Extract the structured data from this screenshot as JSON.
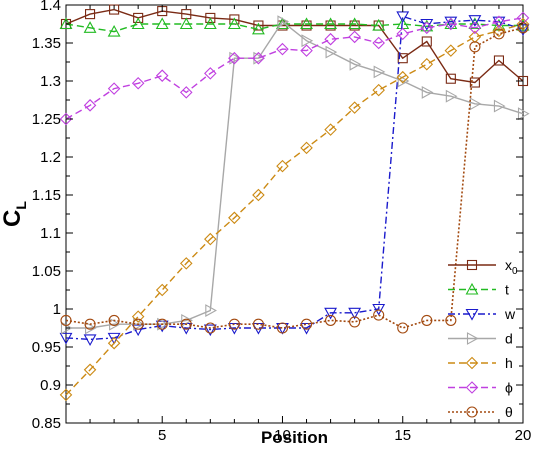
{
  "chart_data": {
    "type": "line",
    "title": "",
    "xlabel": "Position",
    "ylabel": "C",
    "ylabel_sub": "L",
    "xlim": [
      1,
      20
    ],
    "ylim": [
      0.85,
      1.4
    ],
    "x_ticks": [
      5,
      10,
      15,
      20
    ],
    "x_tick_labels": [
      "5",
      "10",
      "15",
      "20"
    ],
    "y_ticks": [
      0.85,
      0.9,
      0.95,
      1.0,
      1.05,
      1.1,
      1.15,
      1.2,
      1.25,
      1.3,
      1.35,
      1.4
    ],
    "y_tick_labels": [
      "0.85",
      "0.9",
      "0.95",
      "1",
      "1.05",
      "1.1",
      "1.15",
      "1.2",
      "1.25",
      "1.3",
      "1.35",
      "1.4"
    ],
    "grid": false,
    "legend_position": "bottom-right",
    "x": [
      1,
      2,
      3,
      4,
      5,
      6,
      7,
      8,
      9,
      10,
      11,
      12,
      13,
      14,
      15,
      16,
      17,
      18,
      19,
      20
    ],
    "series": [
      {
        "name": "x",
        "name_sub": "0",
        "color": "#7a2a14",
        "dash": "solid",
        "marker": "square",
        "values": [
          1.375,
          1.388,
          1.394,
          1.383,
          1.392,
          1.388,
          1.383,
          1.381,
          1.373,
          1.373,
          1.373,
          1.373,
          1.373,
          1.373,
          1.33,
          1.352,
          1.303,
          1.298,
          1.327,
          1.3
        ]
      },
      {
        "name": "t",
        "color": "#22bb22",
        "dash": "dashed",
        "marker": "triangle-up",
        "values": [
          1.375,
          1.37,
          1.365,
          1.375,
          1.375,
          1.375,
          1.375,
          1.375,
          1.368,
          1.375,
          1.375,
          1.375,
          1.375,
          1.373,
          1.375,
          1.372,
          1.375,
          1.375,
          1.373,
          1.373
        ]
      },
      {
        "name": "w",
        "color": "#1a1acc",
        "dash": "dashdot",
        "marker": "triangle-down",
        "values": [
          0.962,
          0.96,
          0.962,
          0.973,
          0.978,
          0.975,
          0.973,
          0.975,
          0.975,
          0.975,
          0.975,
          0.995,
          0.995,
          1.0,
          1.385,
          1.375,
          1.378,
          1.38,
          1.378,
          1.368
        ]
      },
      {
        "name": "d",
        "color": "#a8a8a8",
        "dash": "solid",
        "marker": "triangle-right",
        "values": [
          0.975,
          0.975,
          0.98,
          0.98,
          0.98,
          0.985,
          0.998,
          1.33,
          1.33,
          1.378,
          1.353,
          1.338,
          1.322,
          1.312,
          1.3,
          1.285,
          1.28,
          1.27,
          1.267,
          1.257
        ]
      },
      {
        "name": "h",
        "color": "#cc8a14",
        "dash": "dashed",
        "marker": "diamond",
        "values": [
          0.887,
          0.92,
          0.955,
          0.99,
          1.025,
          1.06,
          1.092,
          1.12,
          1.15,
          1.188,
          1.212,
          1.236,
          1.265,
          1.288,
          1.305,
          1.322,
          1.34,
          1.358,
          1.366,
          1.375
        ]
      },
      {
        "name": "ϕ",
        "color": "#c040e0",
        "dash": "dashed",
        "marker": "diamond",
        "values": [
          1.25,
          1.268,
          1.29,
          1.297,
          1.307,
          1.285,
          1.31,
          1.33,
          1.33,
          1.342,
          1.34,
          1.355,
          1.358,
          1.35,
          1.362,
          1.37,
          1.375,
          1.37,
          1.378,
          1.383
        ]
      },
      {
        "name": "θ",
        "color": "#a34a10",
        "dash": "dotted",
        "marker": "circle",
        "values": [
          0.985,
          0.98,
          0.985,
          0.98,
          0.98,
          0.98,
          0.975,
          0.98,
          0.98,
          0.975,
          0.98,
          0.985,
          0.983,
          0.992,
          0.975,
          0.985,
          0.985,
          1.345,
          1.362,
          1.37
        ]
      }
    ]
  }
}
